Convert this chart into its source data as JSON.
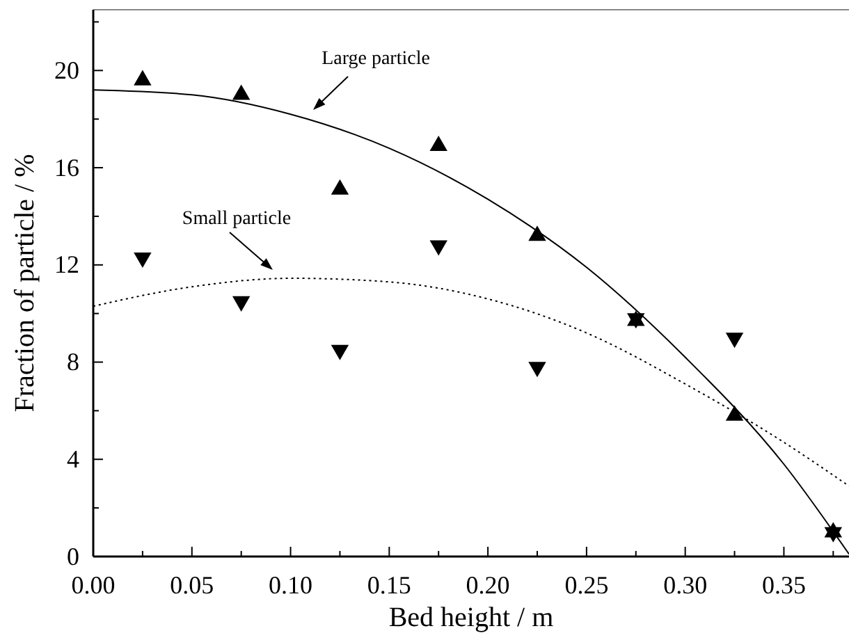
{
  "chart_data": {
    "type": "scatter",
    "xlabel": "Bed height / m",
    "ylabel": "Fraction of particle / %",
    "xlim": [
      0,
      0.383
    ],
    "ylim": [
      0,
      22.5
    ],
    "xticks": [
      {
        "value": 0,
        "label": "0.00"
      },
      {
        "value": 0.05,
        "label": "0.05"
      },
      {
        "value": 0.1,
        "label": "0.10"
      },
      {
        "value": 0.15,
        "label": "0.15"
      },
      {
        "value": 0.2,
        "label": "0.20"
      },
      {
        "value": 0.25,
        "label": "0.25"
      },
      {
        "value": 0.3,
        "label": "0.30"
      },
      {
        "value": 0.35,
        "label": "0.35"
      }
    ],
    "yticks": [
      0,
      4,
      8,
      12,
      16,
      20
    ],
    "grid": false,
    "series": [
      {
        "marker": "triangle",
        "color": "#000000",
        "x": [
          0.025,
          0.075,
          0.125,
          0.175,
          0.225,
          0.275,
          0.325,
          0.375
        ],
        "values": [
          19.6,
          19.0,
          15.1,
          16.9,
          13.2,
          9.7,
          5.8,
          1.0
        ]
      },
      {
        "marker": "triangle-down",
        "color": "#000000",
        "x": [
          0.025,
          0.075,
          0.125,
          0.175,
          0.225,
          0.275,
          0.325,
          0.375
        ],
        "values": [
          12.3,
          10.5,
          8.5,
          12.8,
          7.8,
          9.8,
          9.0,
          1.0
        ]
      },
      {
        "type": "line",
        "marker": "none",
        "line_style": "solid",
        "color": "#000000",
        "x": [
          0,
          0.05,
          0.1,
          0.15,
          0.2,
          0.25,
          0.3,
          0.35,
          0.383
        ],
        "values": [
          19.2,
          19.0,
          18.2,
          16.8,
          14.7,
          11.9,
          8.2,
          3.8,
          0.1
        ]
      },
      {
        "type": "line",
        "marker": "none",
        "line_style": "dotted",
        "color": "#000000",
        "x": [
          0,
          0.05,
          0.1,
          0.15,
          0.2,
          0.25,
          0.3,
          0.35,
          0.383
        ],
        "values": [
          10.3,
          11.1,
          11.45,
          11.3,
          10.6,
          9.2,
          7.1,
          4.7,
          2.9
        ]
      }
    ],
    "annotations": [
      "Large particle",
      "Small particle"
    ]
  }
}
